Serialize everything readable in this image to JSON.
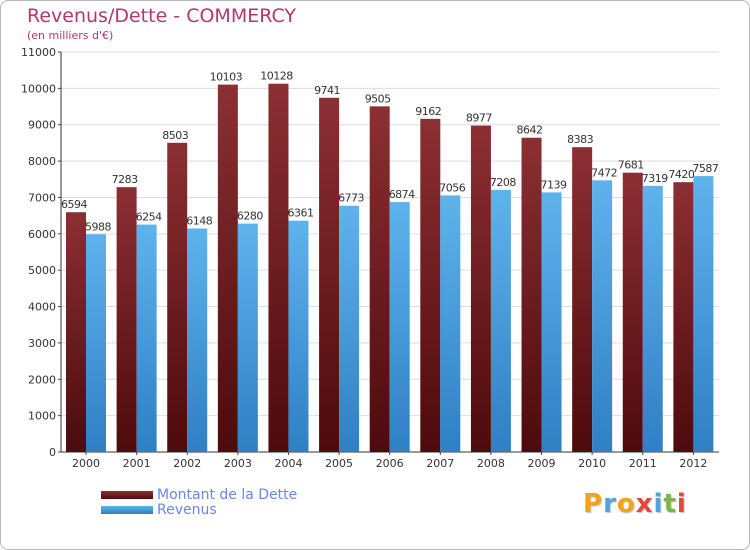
{
  "header": {
    "title": "Revenus/Dette - COMMERCY",
    "subtitle": "(en milliers d'€)"
  },
  "chart_data": {
    "type": "bar",
    "title": "Revenus/Dette - COMMERCY",
    "ylabel": "(en milliers d'€)",
    "xlabel": "",
    "categories": [
      "2000",
      "2001",
      "2002",
      "2003",
      "2004",
      "2005",
      "2006",
      "2007",
      "2008",
      "2009",
      "2010",
      "2011",
      "2012"
    ],
    "series": [
      {
        "name": "Montant de la Dette",
        "values": [
          6594,
          7283,
          8503,
          10103,
          10128,
          9741,
          9505,
          9162,
          8977,
          8642,
          8383,
          7681,
          7420
        ],
        "color": "#7a1e22"
      },
      {
        "name": "Revenus",
        "values": [
          5988,
          6254,
          6148,
          6280,
          6361,
          6773,
          6874,
          7056,
          7208,
          7139,
          7472,
          7319,
          7587
        ],
        "color": "#4ea6e4"
      }
    ],
    "ylim": [
      0,
      11000
    ],
    "yticks": [
      0,
      1000,
      2000,
      3000,
      4000,
      5000,
      6000,
      7000,
      8000,
      9000,
      10000,
      11000
    ],
    "grid": true,
    "legend": "bottom-left"
  },
  "legend": {
    "items": [
      {
        "label": "Montant de la Dette",
        "color": "#6b1518"
      },
      {
        "label": "Revenus",
        "color": "#3b8fd4"
      }
    ]
  },
  "brand": {
    "letters": [
      "P",
      "r",
      "o",
      "x",
      "i",
      "t",
      "i"
    ],
    "colors": [
      "#f4a21b",
      "#4fa3e0",
      "#f4a21b",
      "#e8463a",
      "#4fa3e0",
      "#7ab648",
      "#e8463a"
    ]
  }
}
